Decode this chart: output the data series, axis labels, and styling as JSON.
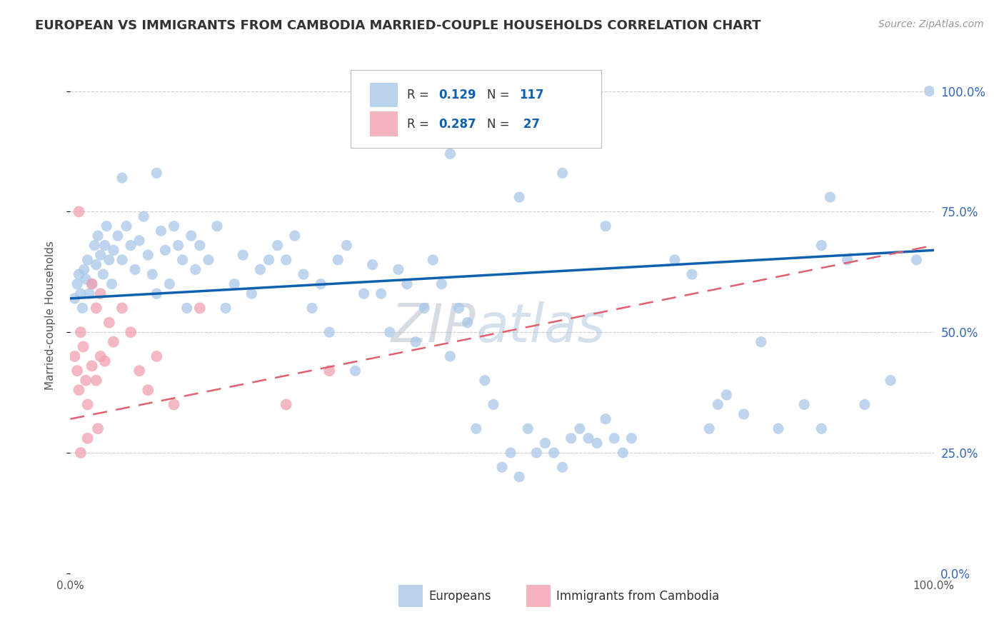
{
  "title": "EUROPEAN VS IMMIGRANTS FROM CAMBODIA MARRIED-COUPLE HOUSEHOLDS CORRELATION CHART",
  "source": "Source: ZipAtlas.com",
  "ylabel": "Married-couple Households",
  "ytick_labels": [
    "0.0%",
    "25.0%",
    "50.0%",
    "75.0%",
    "100.0%"
  ],
  "ytick_values": [
    0,
    25,
    50,
    75,
    100
  ],
  "legend_labels": [
    "Europeans",
    "Immigrants from Cambodia"
  ],
  "blue_color": "#a8c8e8",
  "pink_color": "#f0a0b0",
  "blue_line_color": "#1060b0",
  "pink_line_color": "#e06070",
  "watermark_zip": "ZIP",
  "watermark_atlas": "atlas",
  "blue_scatter": [
    [
      0.5,
      57
    ],
    [
      0.8,
      60
    ],
    [
      1.0,
      62
    ],
    [
      1.2,
      58
    ],
    [
      1.4,
      55
    ],
    [
      1.6,
      63
    ],
    [
      1.8,
      61
    ],
    [
      2.0,
      65
    ],
    [
      2.2,
      58
    ],
    [
      2.5,
      60
    ],
    [
      2.8,
      68
    ],
    [
      3.0,
      64
    ],
    [
      3.2,
      70
    ],
    [
      3.5,
      66
    ],
    [
      3.8,
      62
    ],
    [
      4.0,
      68
    ],
    [
      4.2,
      72
    ],
    [
      4.5,
      65
    ],
    [
      4.8,
      60
    ],
    [
      5.0,
      67
    ],
    [
      5.5,
      70
    ],
    [
      6.0,
      65
    ],
    [
      6.5,
      72
    ],
    [
      7.0,
      68
    ],
    [
      7.5,
      63
    ],
    [
      8.0,
      69
    ],
    [
      8.5,
      74
    ],
    [
      9.0,
      66
    ],
    [
      9.5,
      62
    ],
    [
      10.0,
      58
    ],
    [
      10.5,
      71
    ],
    [
      11.0,
      67
    ],
    [
      11.5,
      60
    ],
    [
      12.0,
      72
    ],
    [
      12.5,
      68
    ],
    [
      13.0,
      65
    ],
    [
      13.5,
      55
    ],
    [
      14.0,
      70
    ],
    [
      14.5,
      63
    ],
    [
      15.0,
      68
    ],
    [
      16.0,
      65
    ],
    [
      17.0,
      72
    ],
    [
      18.0,
      55
    ],
    [
      19.0,
      60
    ],
    [
      20.0,
      66
    ],
    [
      21.0,
      58
    ],
    [
      22.0,
      63
    ],
    [
      23.0,
      65
    ],
    [
      24.0,
      68
    ],
    [
      25.0,
      65
    ],
    [
      26.0,
      70
    ],
    [
      27.0,
      62
    ],
    [
      28.0,
      55
    ],
    [
      29.0,
      60
    ],
    [
      30.0,
      50
    ],
    [
      31.0,
      65
    ],
    [
      32.0,
      68
    ],
    [
      33.0,
      42
    ],
    [
      34.0,
      58
    ],
    [
      35.0,
      64
    ],
    [
      36.0,
      58
    ],
    [
      37.0,
      50
    ],
    [
      38.0,
      63
    ],
    [
      39.0,
      60
    ],
    [
      40.0,
      48
    ],
    [
      41.0,
      55
    ],
    [
      42.0,
      65
    ],
    [
      43.0,
      60
    ],
    [
      44.0,
      45
    ],
    [
      45.0,
      55
    ],
    [
      46.0,
      52
    ],
    [
      47.0,
      30
    ],
    [
      48.0,
      40
    ],
    [
      49.0,
      35
    ],
    [
      50.0,
      22
    ],
    [
      51.0,
      25
    ],
    [
      52.0,
      20
    ],
    [
      53.0,
      30
    ],
    [
      54.0,
      25
    ],
    [
      55.0,
      27
    ],
    [
      56.0,
      25
    ],
    [
      57.0,
      22
    ],
    [
      58.0,
      28
    ],
    [
      59.0,
      30
    ],
    [
      60.0,
      28
    ],
    [
      61.0,
      27
    ],
    [
      62.0,
      32
    ],
    [
      63.0,
      28
    ],
    [
      64.0,
      25
    ],
    [
      65.0,
      28
    ],
    [
      70.0,
      65
    ],
    [
      72.0,
      62
    ],
    [
      74.0,
      30
    ],
    [
      75.0,
      35
    ],
    [
      76.0,
      37
    ],
    [
      78.0,
      33
    ],
    [
      80.0,
      48
    ],
    [
      82.0,
      30
    ],
    [
      85.0,
      35
    ],
    [
      87.0,
      30
    ],
    [
      90.0,
      65
    ],
    [
      92.0,
      35
    ],
    [
      95.0,
      40
    ],
    [
      98.0,
      65
    ],
    [
      99.5,
      100
    ],
    [
      52.0,
      78
    ],
    [
      57.0,
      83
    ],
    [
      62.0,
      72
    ],
    [
      44.0,
      87
    ],
    [
      40.0,
      90
    ],
    [
      6.0,
      82
    ],
    [
      10.0,
      83
    ],
    [
      88.0,
      78
    ],
    [
      87.0,
      68
    ]
  ],
  "pink_scatter": [
    [
      0.5,
      45
    ],
    [
      0.8,
      42
    ],
    [
      1.0,
      38
    ],
    [
      1.2,
      50
    ],
    [
      1.5,
      47
    ],
    [
      1.8,
      40
    ],
    [
      2.0,
      35
    ],
    [
      2.5,
      43
    ],
    [
      3.0,
      40
    ],
    [
      3.5,
      45
    ],
    [
      4.0,
      44
    ],
    [
      4.5,
      52
    ],
    [
      5.0,
      48
    ],
    [
      6.0,
      55
    ],
    [
      7.0,
      50
    ],
    [
      8.0,
      42
    ],
    [
      9.0,
      38
    ],
    [
      10.0,
      45
    ],
    [
      12.0,
      35
    ],
    [
      15.0,
      55
    ],
    [
      1.0,
      75
    ],
    [
      2.5,
      60
    ],
    [
      3.0,
      55
    ],
    [
      3.5,
      58
    ],
    [
      2.0,
      28
    ],
    [
      3.2,
      30
    ],
    [
      1.2,
      25
    ],
    [
      25.0,
      35
    ],
    [
      30.0,
      42
    ]
  ],
  "blue_trend_x": [
    0,
    100
  ],
  "blue_trend_y": [
    57,
    67
  ],
  "pink_trend_x": [
    0,
    100
  ],
  "pink_trend_y": [
    32,
    68
  ],
  "xlim": [
    0,
    100
  ],
  "ylim": [
    0,
    107
  ]
}
